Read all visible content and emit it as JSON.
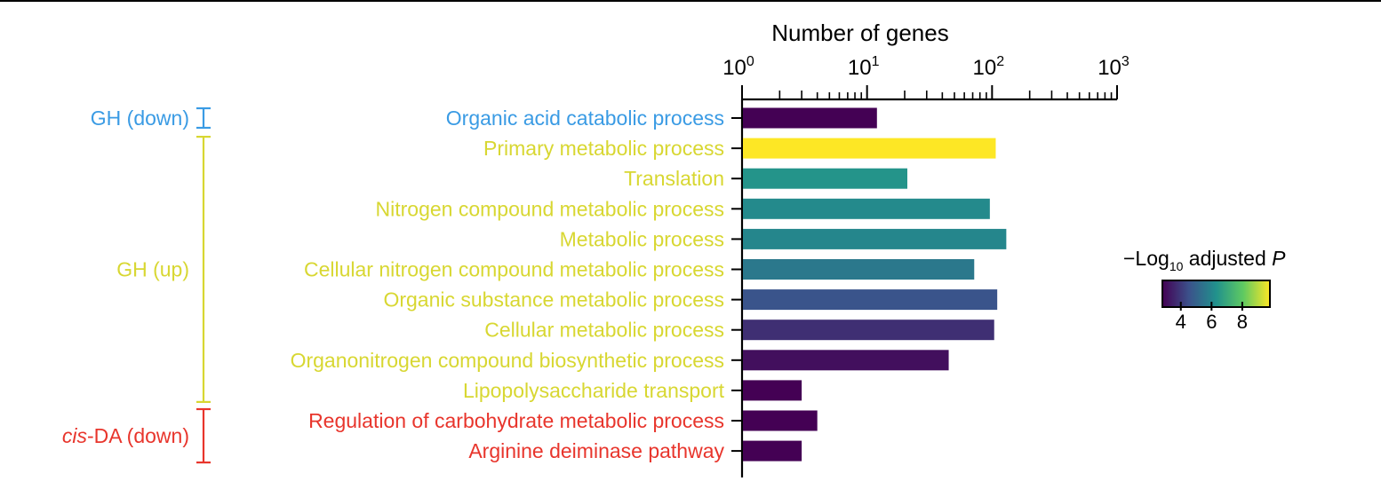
{
  "chart_data": {
    "type": "bar",
    "orientation": "horizontal",
    "xlabel": "Number of genes",
    "xscale": "log",
    "xlim": [
      1,
      1000
    ],
    "xticks": [
      {
        "base": "10",
        "exp": "0"
      },
      {
        "base": "10",
        "exp": "1"
      },
      {
        "base": "10",
        "exp": "2"
      },
      {
        "base": "10",
        "exp": "3"
      }
    ],
    "categories": [
      "Organic acid catabolic process",
      "Primary metabolic process",
      "Translation",
      "Nitrogen compound metabolic process",
      "Metabolic process",
      "Cellular nitrogen compound metabolic process",
      "Organic substance metabolic process",
      "Cellular metabolic process",
      "Organonitrogen compound biosynthetic process",
      "Lipopolysaccharide transport",
      "Regulation of carbohydrate metabolic process",
      "Arginine deiminase pathway"
    ],
    "values": [
      12,
      107,
      21,
      96,
      130,
      72,
      110,
      104,
      45,
      3,
      4,
      3
    ],
    "neg_log10_adj_p": [
      2.8,
      9.8,
      6.4,
      6.1,
      6.0,
      5.6,
      4.6,
      3.8,
      3.1,
      2.8,
      2.8,
      2.8
    ],
    "category_colors": [
      "#3a9be4",
      "#d8d732",
      "#d8d732",
      "#d8d732",
      "#d8d732",
      "#d8d732",
      "#d8d732",
      "#d8d732",
      "#d8d732",
      "#d8d732",
      "#e8352c",
      "#e8352c"
    ],
    "groups": [
      {
        "label_italic": "",
        "label": "GH (down)",
        "color": "#3a9be4",
        "start": 0,
        "end": 0
      },
      {
        "label_italic": "",
        "label": "GH (up)",
        "color": "#d8d732",
        "start": 1,
        "end": 9
      },
      {
        "label_italic": "cis",
        "label": "-DA (down)",
        "color": "#e8352c",
        "start": 10,
        "end": 11
      }
    ],
    "colorbar": {
      "title_prefix": "−Log",
      "title_sub": "10",
      "title_mid": " adjusted ",
      "title_italic": "P",
      "range": [
        2.8,
        9.8
      ],
      "ticks": [
        "4",
        "6",
        "8"
      ],
      "colormap": "viridis"
    }
  }
}
